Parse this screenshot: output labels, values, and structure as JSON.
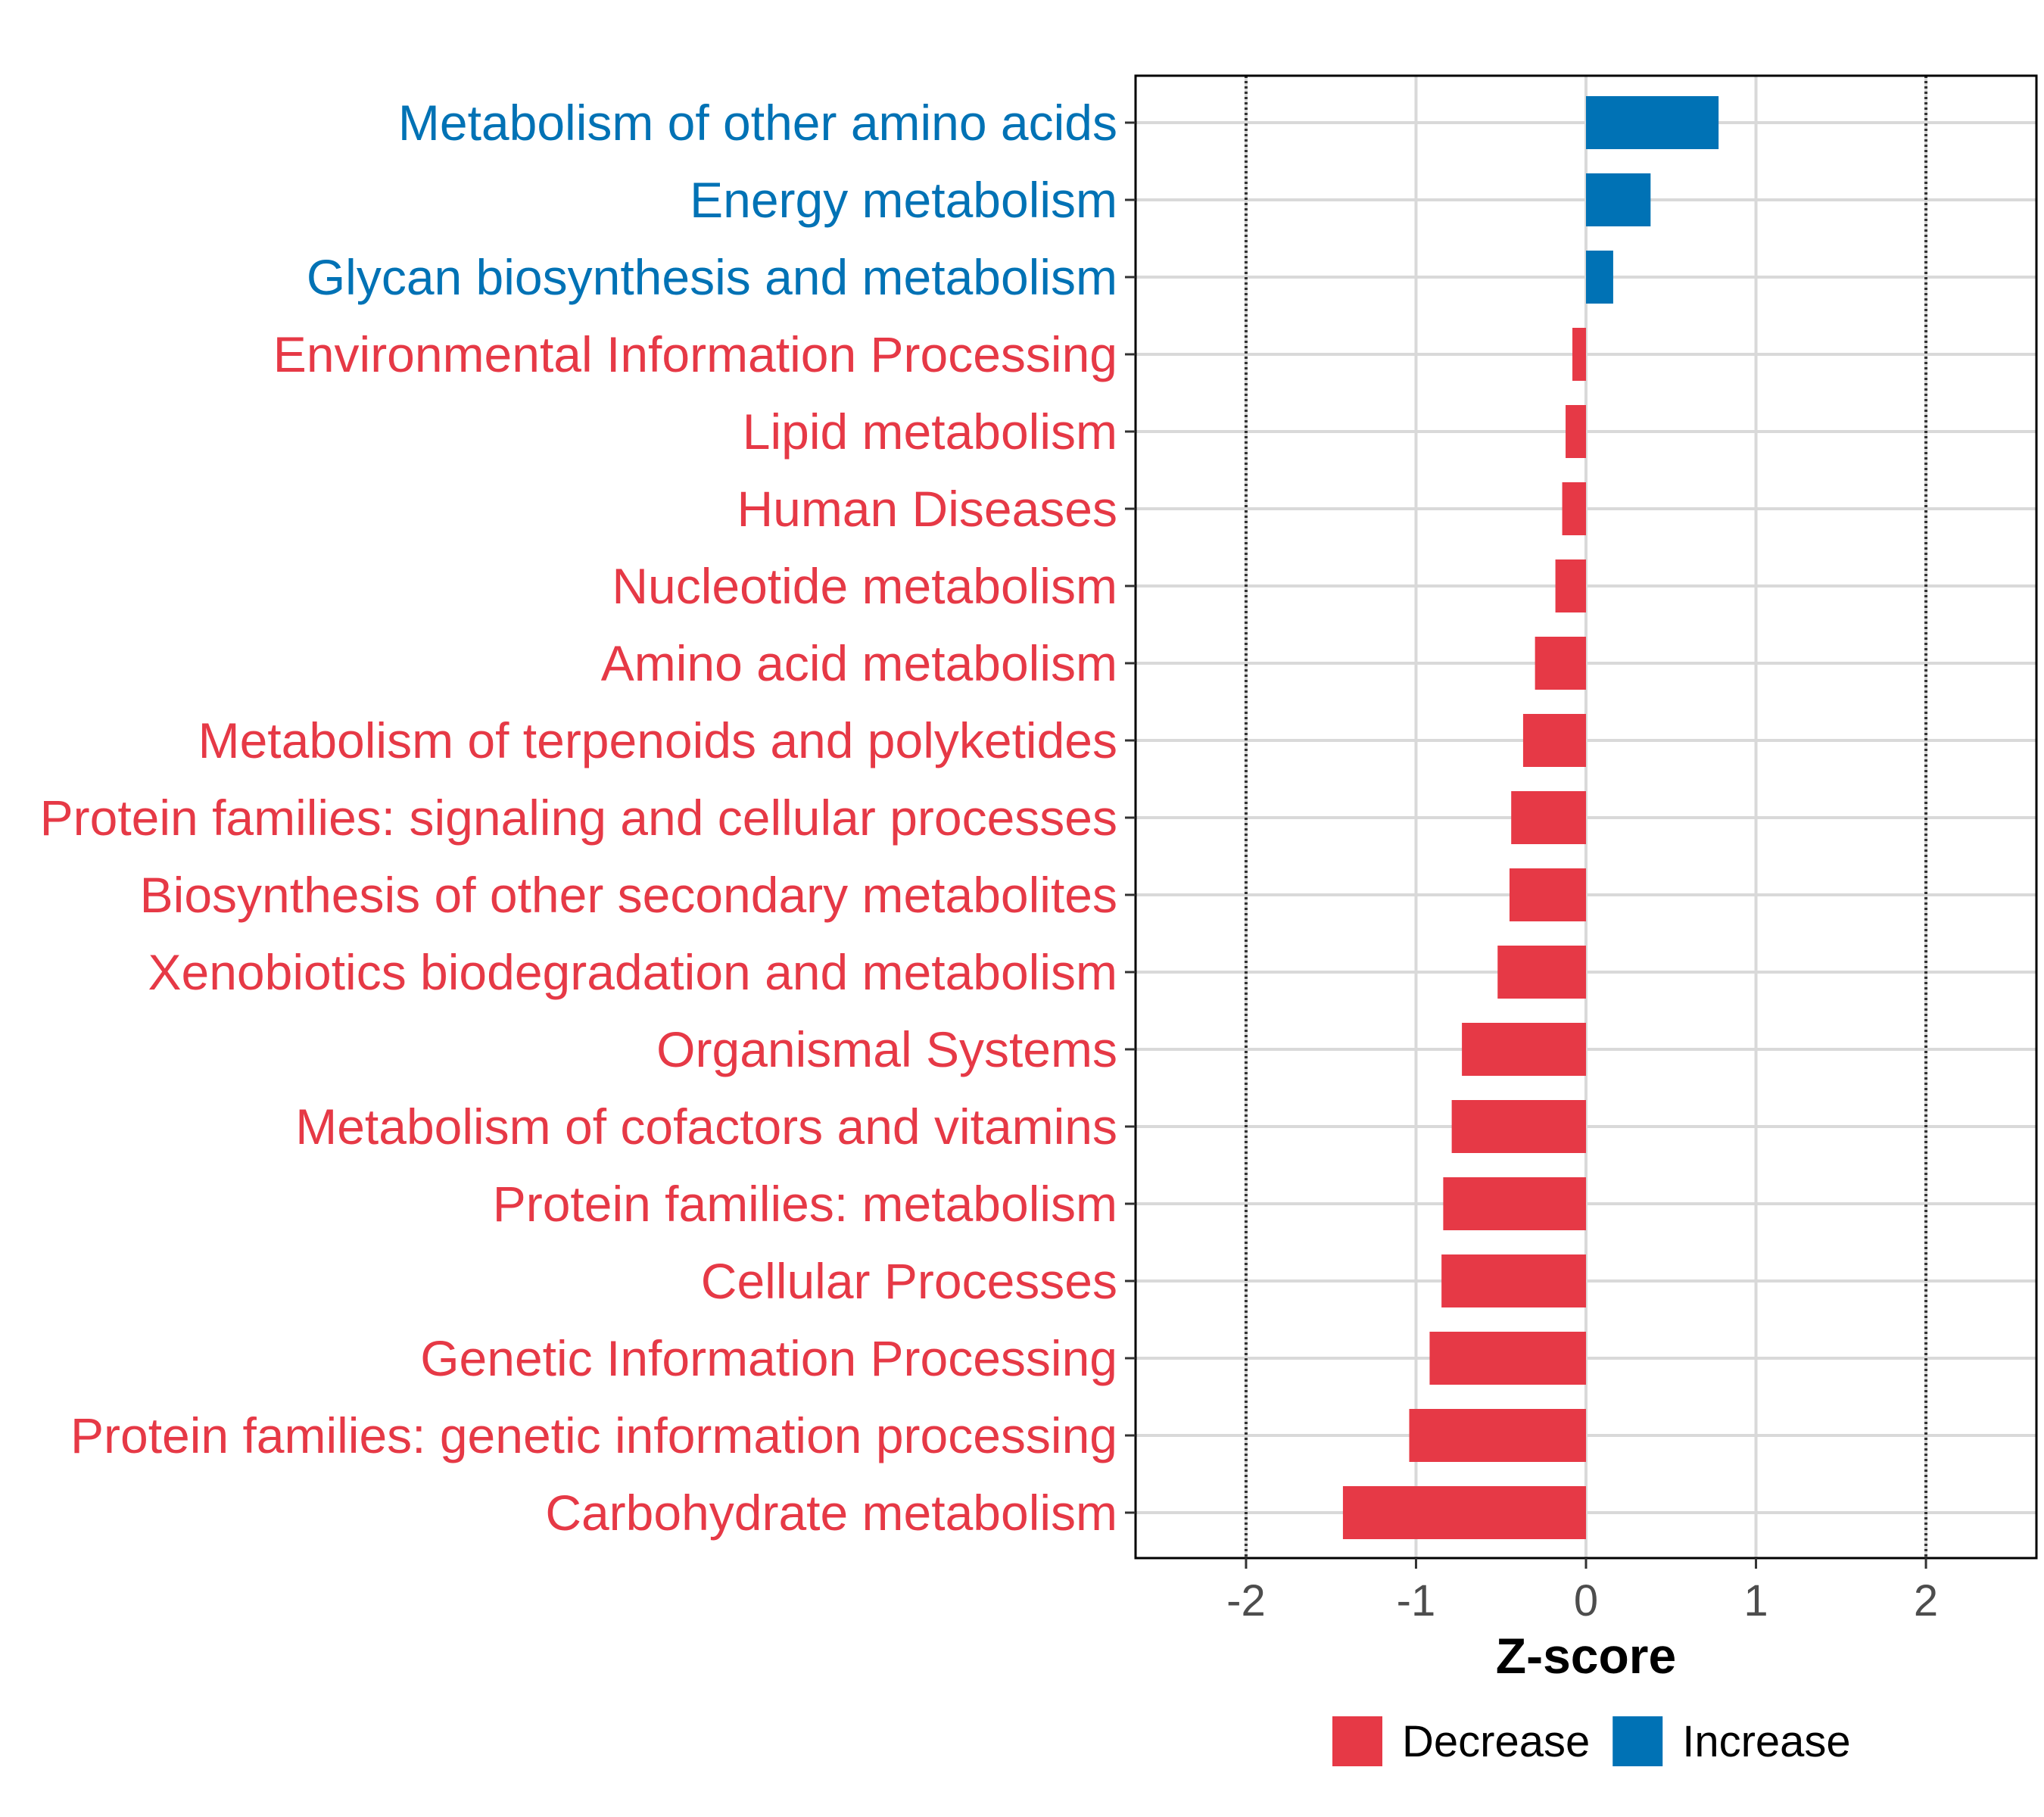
{
  "chart_data": {
    "type": "bar",
    "orientation": "horizontal",
    "xlabel": "Z-score",
    "xlim": [
      -2.65,
      2.65
    ],
    "xticks": [
      -2,
      -1,
      0,
      1,
      2
    ],
    "xtick_labels": [
      "-2",
      "-1",
      "0",
      "1",
      "2"
    ],
    "reference_lines": [
      -2,
      2
    ],
    "grid": true,
    "categories": [
      "Metabolism of other amino acids",
      "Energy metabolism",
      "Glycan biosynthesis and metabolism",
      "Environmental Information Processing",
      "Lipid metabolism",
      "Human Diseases",
      "Nucleotide metabolism",
      "Amino acid metabolism",
      "Metabolism of terpenoids and polyketides",
      "Protein families: signaling and cellular processes",
      "Biosynthesis of other secondary metabolites",
      "Xenobiotics biodegradation and metabolism",
      "Organismal Systems",
      "Metabolism of cofactors and vitamins",
      "Protein families: metabolism",
      "Cellular Processes",
      "Genetic Information Processing",
      "Protein families: genetic information processing",
      "Carbohydrate metabolism"
    ],
    "values": [
      0.78,
      0.38,
      0.16,
      -0.08,
      -0.12,
      -0.14,
      -0.18,
      -0.3,
      -0.37,
      -0.44,
      -0.45,
      -0.52,
      -0.73,
      -0.79,
      -0.84,
      -0.85,
      -0.92,
      -1.04,
      -1.43
    ],
    "groups": [
      "Increase",
      "Increase",
      "Increase",
      "Decrease",
      "Decrease",
      "Decrease",
      "Decrease",
      "Decrease",
      "Decrease",
      "Decrease",
      "Decrease",
      "Decrease",
      "Decrease",
      "Decrease",
      "Decrease",
      "Decrease",
      "Decrease",
      "Decrease",
      "Decrease"
    ],
    "legend": {
      "position": "bottom",
      "items": [
        {
          "label": "Decrease",
          "color": "#E63946"
        },
        {
          "label": "Increase",
          "color": "#0072B5"
        }
      ]
    }
  },
  "colors": {
    "decrease": "#E63946",
    "increase": "#0072B5",
    "grid": "#D9D9D9",
    "panel_border": "#000000"
  }
}
